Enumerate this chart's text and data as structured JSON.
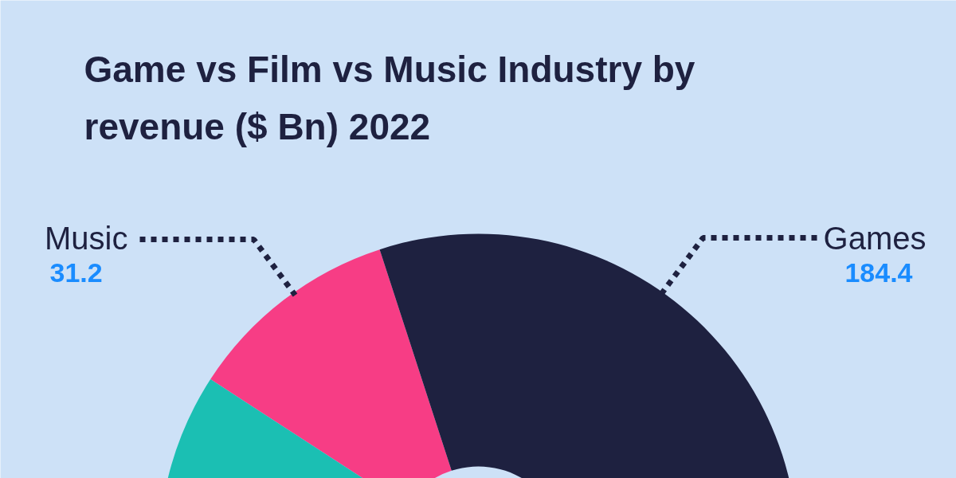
{
  "chart_data": {
    "type": "donut",
    "title": "Game vs Film vs Music Industry by revenue ($ Bn) 2022",
    "categories": [
      "Music",
      null,
      "Games"
    ],
    "values": [
      31.2,
      72.4,
      184.4
    ],
    "colors": [
      "#f73d85",
      "#1bbfb3",
      "#1e2140"
    ],
    "value_labels": [
      "31.2",
      null,
      "184.4"
    ]
  }
}
